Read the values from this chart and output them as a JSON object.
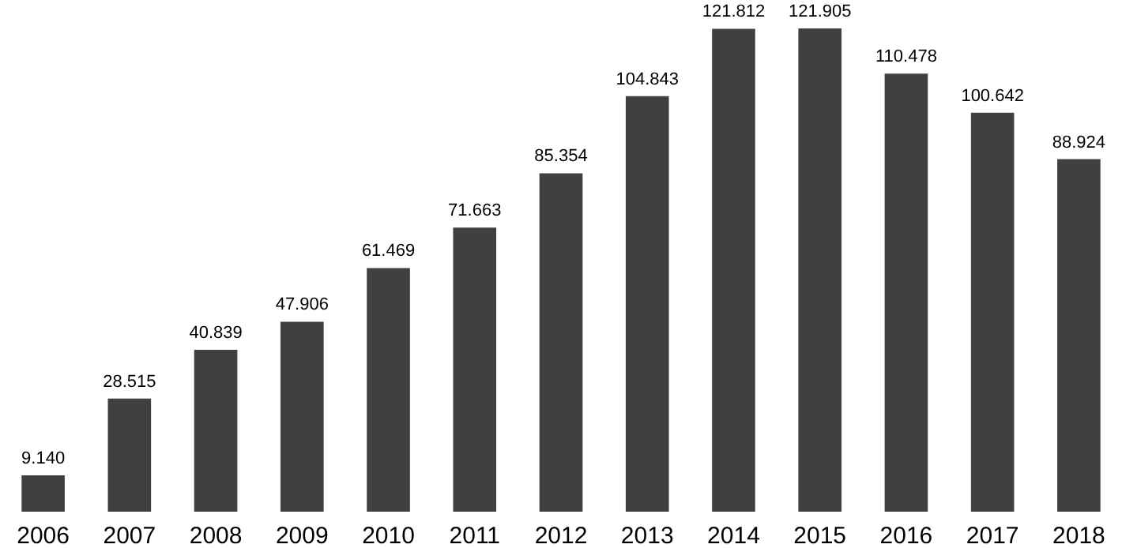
{
  "chart_data": {
    "type": "bar",
    "categories": [
      "2006",
      "2007",
      "2008",
      "2009",
      "2010",
      "2011",
      "2012",
      "2013",
      "2014",
      "2015",
      "2016",
      "2017",
      "2018"
    ],
    "values": [
      9.14,
      28.515,
      40.839,
      47.906,
      61.469,
      71.663,
      85.354,
      104.843,
      121.812,
      121.905,
      110.478,
      100.642,
      88.924
    ],
    "value_labels": [
      "9.140",
      "28.515",
      "40.839",
      "47.906",
      "61.469",
      "71.663",
      "85.354",
      "104.843",
      "121.812",
      "121.905",
      "110.478",
      "100.642",
      "88.924"
    ],
    "color": "#404040"
  }
}
